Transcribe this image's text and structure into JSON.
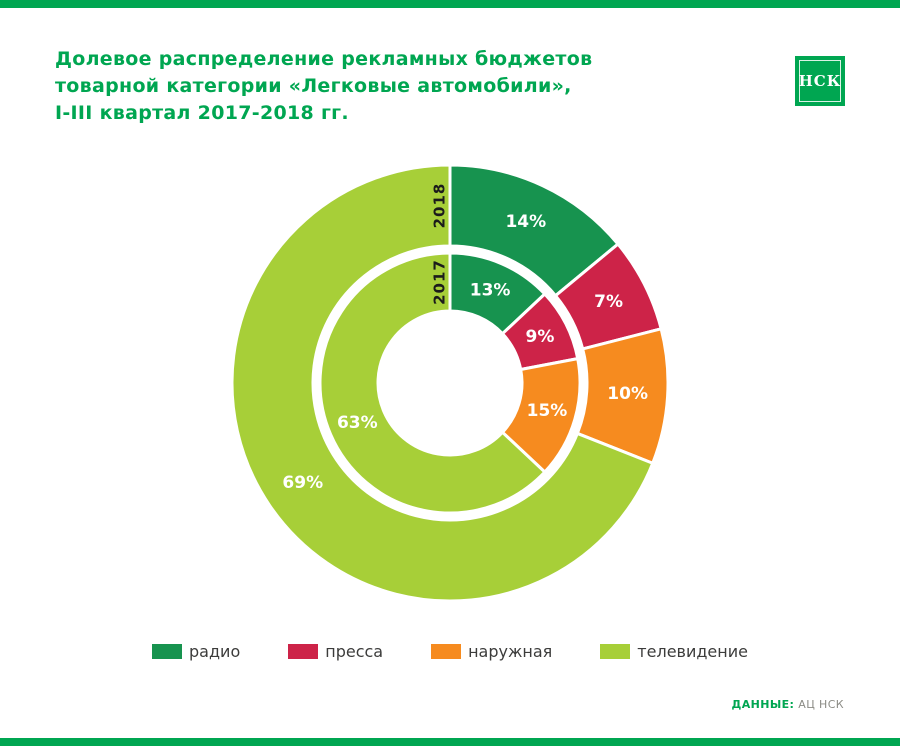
{
  "header": {
    "title_lines": [
      "Долевое распределение рекламных бюджетов",
      "товарной категории «Легковые автомобили»,",
      "I-III квартал 2017-2018 гг."
    ],
    "logo_text": "НСК"
  },
  "chart_data": {
    "type": "pie",
    "subtype": "double-ring-donut",
    "title": "Долевое распределение рекламных бюджетов товарной категории «Легковые автомобили», I-III квартал 2017-2018 гг.",
    "unit": "%",
    "categories": [
      "радио",
      "пресса",
      "наружная",
      "телевидение"
    ],
    "colors": [
      "#17934f",
      "#cd2348",
      "#f68b1f",
      "#a7cf38"
    ],
    "rings": [
      {
        "name": "2018",
        "position": "outer",
        "values": [
          14,
          7,
          10,
          69
        ]
      },
      {
        "name": "2017",
        "position": "inner",
        "values": [
          13,
          9,
          15,
          63
        ]
      }
    ],
    "legend_position": "bottom",
    "segment_start": "top",
    "direction": "clockwise"
  },
  "legend": {
    "items": [
      {
        "label": "радио"
      },
      {
        "label": "пресса"
      },
      {
        "label": "наружная"
      },
      {
        "label": "телевидение"
      }
    ]
  },
  "footer": {
    "source_label": "ДАННЫЕ:",
    "source_value": "АЦ НСК"
  },
  "colors": {
    "brand_green": "#00a651",
    "legend_text": "#3c3c3b",
    "source_text_gray": "#8b8b85"
  }
}
